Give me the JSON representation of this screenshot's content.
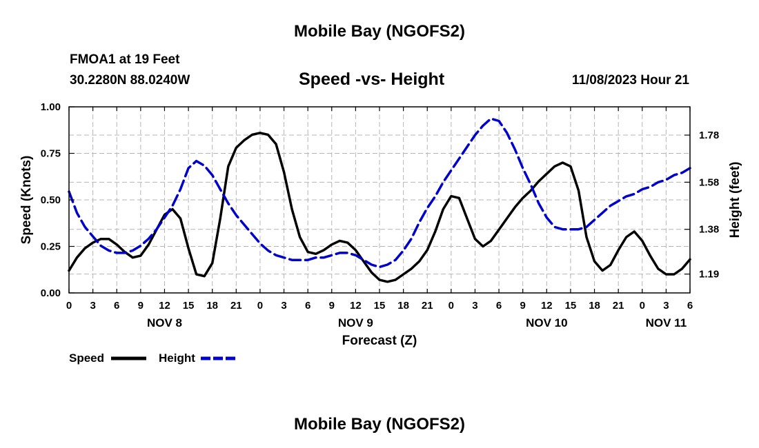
{
  "page": {
    "top_title": "Mobile Bay (NGOFS2)",
    "bottom_title": "Mobile Bay (NGOFS2)",
    "station": "FMOA1 at 19 Feet",
    "coordinates": "30.2280N  88.0240W",
    "datetime": "11/08/2023 Hour 21"
  },
  "chart_data": {
    "type": "line",
    "title": "Speed -vs- Height",
    "xlabel": "Forecast (Z)",
    "ylabel": "Speed (Knots)",
    "y2label": "Height (feet)",
    "x_unit": "hours since NOV 8 00Z",
    "xlim": [
      0,
      78
    ],
    "ylim": [
      0,
      1.0
    ],
    "y2lim": [
      1.11,
      1.9
    ],
    "x_tick_values": [
      0,
      3,
      6,
      9,
      12,
      15,
      18,
      21,
      24,
      27,
      30,
      33,
      36,
      39,
      42,
      45,
      48,
      51,
      54,
      57,
      60,
      63,
      66,
      69,
      72,
      75,
      78
    ],
    "x_tick_labels": [
      "0",
      "3",
      "6",
      "9",
      "12",
      "15",
      "18",
      "21",
      "0",
      "3",
      "6",
      "9",
      "12",
      "15",
      "18",
      "21",
      "0",
      "3",
      "6",
      "9",
      "12",
      "15",
      "18",
      "21",
      "0",
      "3",
      "6"
    ],
    "y_ticks": [
      0.0,
      0.25,
      0.5,
      0.75,
      1.0
    ],
    "y_tick_labels": [
      "0.00",
      "0.25",
      "0.50",
      "0.75",
      "1.00"
    ],
    "y2_ticks": [
      1.19,
      1.38,
      1.58,
      1.78
    ],
    "y2_tick_labels": [
      "1.19",
      "1.38",
      "1.58",
      "1.78"
    ],
    "date_labels": [
      {
        "label": "NOV 8",
        "x": 12
      },
      {
        "label": "NOV 9",
        "x": 36
      },
      {
        "label": "NOV 10",
        "x": 60
      },
      {
        "label": "NOV 11",
        "x": 75
      }
    ],
    "grid": true,
    "legend_position": "bottom-left",
    "series": [
      {
        "name": "Speed",
        "axis": "left",
        "color": "#000000",
        "style": "solid",
        "x": [
          0,
          1,
          2,
          3,
          4,
          5,
          6,
          7,
          8,
          9,
          10,
          11,
          12,
          13,
          14,
          15,
          16,
          17,
          18,
          19,
          20,
          21,
          22,
          23,
          24,
          25,
          26,
          27,
          28,
          29,
          30,
          31,
          32,
          33,
          34,
          35,
          36,
          37,
          38,
          39,
          40,
          41,
          42,
          43,
          44,
          45,
          46,
          47,
          48,
          49,
          50,
          51,
          52,
          53,
          54,
          55,
          56,
          57,
          58,
          59,
          60,
          61,
          62,
          63,
          64,
          65,
          66,
          67,
          68,
          69,
          70,
          71,
          72,
          73,
          74,
          75,
          76,
          77,
          78
        ],
        "values": [
          0.12,
          0.19,
          0.24,
          0.27,
          0.29,
          0.29,
          0.26,
          0.22,
          0.19,
          0.2,
          0.26,
          0.34,
          0.42,
          0.45,
          0.4,
          0.24,
          0.1,
          0.09,
          0.16,
          0.4,
          0.68,
          0.78,
          0.82,
          0.85,
          0.86,
          0.85,
          0.8,
          0.65,
          0.45,
          0.3,
          0.22,
          0.21,
          0.23,
          0.26,
          0.28,
          0.27,
          0.23,
          0.17,
          0.11,
          0.07,
          0.06,
          0.07,
          0.1,
          0.13,
          0.17,
          0.23,
          0.33,
          0.45,
          0.52,
          0.51,
          0.4,
          0.29,
          0.25,
          0.28,
          0.34,
          0.4,
          0.46,
          0.51,
          0.55,
          0.6,
          0.64,
          0.68,
          0.7,
          0.68,
          0.55,
          0.3,
          0.17,
          0.12,
          0.15,
          0.23,
          0.3,
          0.33,
          0.28,
          0.2,
          0.13,
          0.1,
          0.1,
          0.13,
          0.18
        ]
      },
      {
        "name": "Height",
        "axis": "right",
        "color": "#0000cc",
        "style": "dashed",
        "x": [
          0,
          1,
          2,
          3,
          4,
          5,
          6,
          7,
          8,
          9,
          10,
          11,
          12,
          13,
          14,
          15,
          16,
          17,
          18,
          19,
          20,
          21,
          22,
          23,
          24,
          25,
          26,
          27,
          28,
          29,
          30,
          31,
          32,
          33,
          34,
          35,
          36,
          37,
          38,
          39,
          40,
          41,
          42,
          43,
          44,
          45,
          46,
          47,
          48,
          49,
          50,
          51,
          52,
          53,
          54,
          55,
          56,
          57,
          58,
          59,
          60,
          61,
          62,
          63,
          64,
          65,
          66,
          67,
          68,
          69,
          70,
          71,
          72,
          73,
          74,
          75,
          76,
          77,
          78
        ],
        "values": [
          1.54,
          1.45,
          1.39,
          1.35,
          1.31,
          1.29,
          1.28,
          1.28,
          1.29,
          1.31,
          1.34,
          1.38,
          1.43,
          1.48,
          1.55,
          1.64,
          1.67,
          1.65,
          1.61,
          1.55,
          1.49,
          1.44,
          1.4,
          1.36,
          1.32,
          1.29,
          1.27,
          1.26,
          1.25,
          1.25,
          1.25,
          1.26,
          1.26,
          1.27,
          1.28,
          1.28,
          1.27,
          1.25,
          1.23,
          1.22,
          1.23,
          1.25,
          1.29,
          1.34,
          1.41,
          1.47,
          1.52,
          1.58,
          1.63,
          1.68,
          1.73,
          1.78,
          1.82,
          1.85,
          1.84,
          1.79,
          1.72,
          1.64,
          1.57,
          1.49,
          1.43,
          1.39,
          1.38,
          1.38,
          1.38,
          1.39,
          1.42,
          1.45,
          1.48,
          1.5,
          1.52,
          1.53,
          1.55,
          1.56,
          1.58,
          1.59,
          1.61,
          1.62,
          1.64
        ]
      }
    ]
  }
}
